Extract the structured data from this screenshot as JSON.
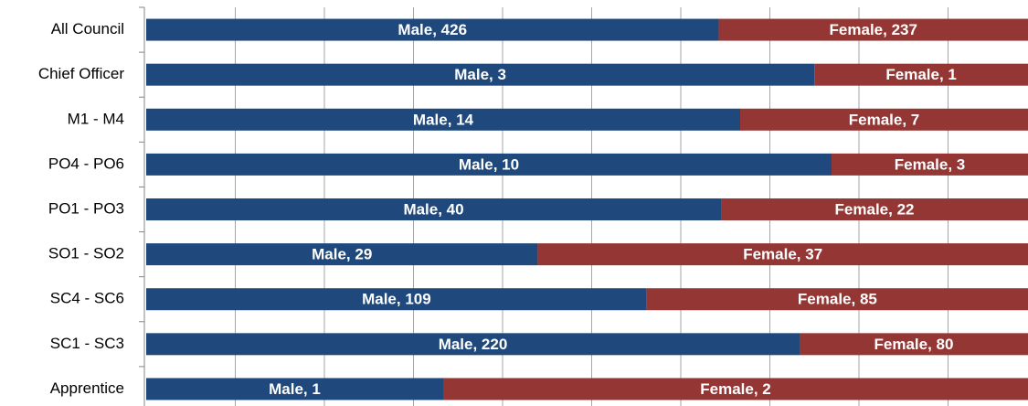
{
  "chart_data": {
    "type": "stacked_bar_100",
    "orientation": "horizontal",
    "categories": [
      "All Council",
      "Chief Officer",
      "M1 - M4",
      "PO4 - PO6",
      "PO1 - PO3",
      "SO1 - SO2",
      "SC4 - SC6",
      "SC1 - SC3",
      "Apprentice"
    ],
    "series": [
      {
        "name": "Male",
        "color": "#1f497d",
        "values": [
          426,
          3,
          14,
          10,
          40,
          29,
          109,
          220,
          1
        ],
        "value_labels": [
          "Male, 426",
          "Male, 3",
          "Male, 14",
          "Male, 10",
          "Male, 40",
          "Male, 29",
          "Male, 109",
          "Male, 220",
          "Male, 1"
        ]
      },
      {
        "name": "Female",
        "color": "#943634",
        "values": [
          237,
          1,
          7,
          3,
          22,
          37,
          85,
          80,
          2
        ],
        "value_labels": [
          "Female, 237",
          "Female, 1",
          "Female, 7",
          "Female, 3",
          "Female, 22",
          "Female, 37",
          "Female, 85",
          "Female, 80",
          "Female, 2"
        ]
      }
    ],
    "xlim": [
      0,
      100
    ],
    "xticks": [
      0,
      10,
      20,
      30,
      40,
      50,
      60,
      70,
      80,
      90,
      100
    ],
    "grid": true
  }
}
